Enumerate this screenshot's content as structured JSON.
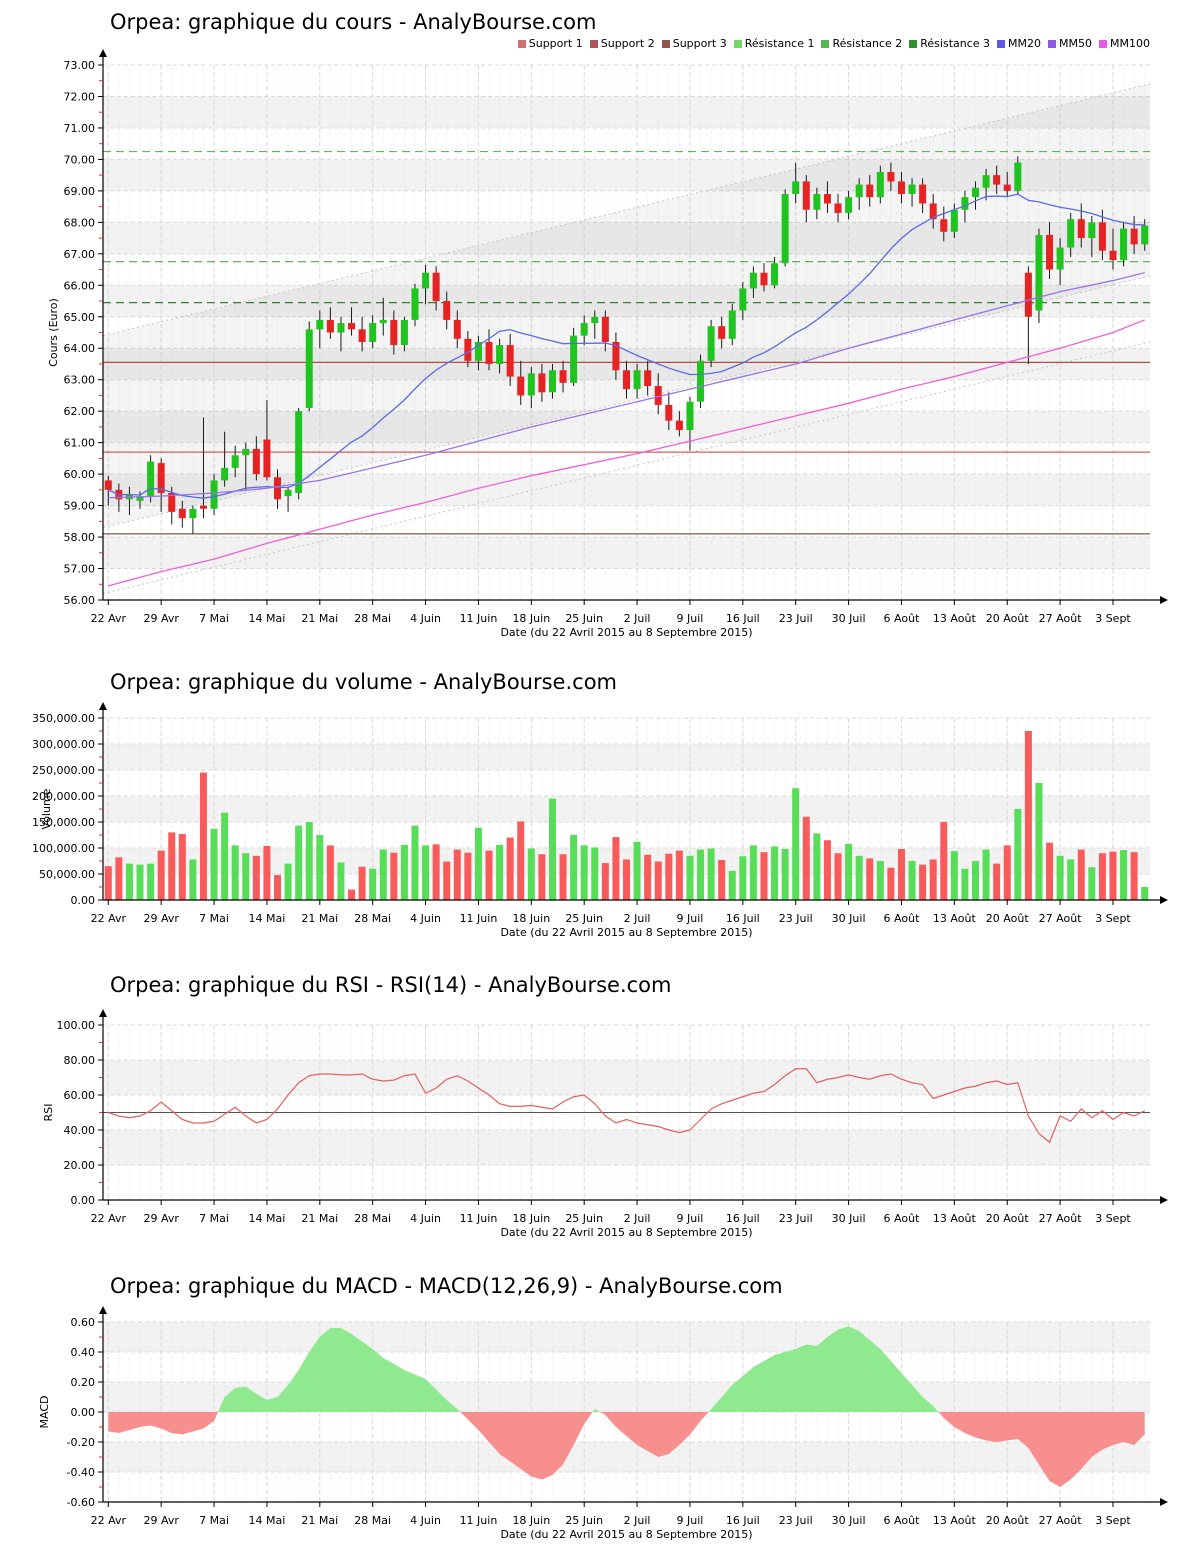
{
  "xlabel": "Date (du 22 Avril 2015 au 8 Septembre 2015)",
  "xticklabels": [
    "22 Avr",
    "29 Avr",
    "7 Mai",
    "14 Mai",
    "21 Mai",
    "28 Mai",
    "4 Juin",
    "11 Juin",
    "18 Juin",
    "25 Juin",
    "2 Juil",
    "9 Juil",
    "16 Juil",
    "23 Juil",
    "30 Juil",
    "6 Août",
    "13 Août",
    "20 Août",
    "27 Août",
    "3 Sept"
  ],
  "chart_data": [
    {
      "type": "candlestick",
      "title": "Orpea: graphique du cours - AnalyBourse.com",
      "ylabel": "Cours (Euro)",
      "ylim": [
        56,
        73
      ],
      "ytick_step": 1,
      "up_color": "#1fc41f",
      "down_color": "#e62222",
      "legend": [
        {
          "label": "Support 1",
          "color": "#c97070"
        },
        {
          "label": "Support 2",
          "color": "#b05656"
        },
        {
          "label": "Support 3",
          "color": "#96544e"
        },
        {
          "label": "Résistance 1",
          "color": "#77d766"
        },
        {
          "label": "Résistance 2",
          "color": "#55b855"
        },
        {
          "label": "Résistance 3",
          "color": "#2f8f2f"
        },
        {
          "label": "MM20",
          "color": "#5a5ae6"
        },
        {
          "label": "MM50",
          "color": "#8f5ae6"
        },
        {
          "label": "MM100",
          "color": "#e65ae6"
        }
      ],
      "support_lines": [
        {
          "label": "Support 1",
          "value": 63.55,
          "color": "#b34d4d"
        },
        {
          "label": "Support 2",
          "value": 60.7,
          "color": "#d05e5e"
        },
        {
          "label": "Support 3",
          "value": 58.1,
          "color": "#8f4f48"
        }
      ],
      "resistance_lines": [
        {
          "label": "Résistance 1",
          "value": 65.45,
          "color": "#357f35"
        },
        {
          "label": "Résistance 2",
          "value": 66.75,
          "color": "#4aa84a"
        },
        {
          "label": "Résistance 3",
          "value": 70.25,
          "color": "#55bb55"
        }
      ],
      "mm20": {
        "label": "MM20",
        "color": "#5c6be0"
      },
      "mm50": {
        "label": "MM50",
        "color": "#9a72ea",
        "points": [
          [
            0,
            59.25
          ],
          [
            5,
            59.3
          ],
          [
            10,
            59.4
          ],
          [
            15,
            59.55
          ],
          [
            20,
            59.8
          ],
          [
            25,
            60.2
          ],
          [
            30,
            60.6
          ],
          [
            35,
            61.05
          ],
          [
            40,
            61.5
          ],
          [
            45,
            61.9
          ],
          [
            50,
            62.3
          ],
          [
            55,
            62.7
          ],
          [
            60,
            63.1
          ],
          [
            65,
            63.5
          ],
          [
            70,
            64.0
          ],
          [
            75,
            64.45
          ],
          [
            80,
            64.9
          ],
          [
            85,
            65.35
          ],
          [
            90,
            65.8
          ],
          [
            95,
            66.15
          ],
          [
            98,
            66.4
          ]
        ]
      },
      "mm100": {
        "label": "MM100",
        "color": "#f05fd5",
        "points": [
          [
            0,
            56.45
          ],
          [
            5,
            56.9
          ],
          [
            10,
            57.3
          ],
          [
            15,
            57.8
          ],
          [
            20,
            58.25
          ],
          [
            25,
            58.7
          ],
          [
            30,
            59.1
          ],
          [
            35,
            59.55
          ],
          [
            40,
            59.95
          ],
          [
            45,
            60.3
          ],
          [
            50,
            60.65
          ],
          [
            55,
            61.05
          ],
          [
            60,
            61.45
          ],
          [
            65,
            61.85
          ],
          [
            70,
            62.25
          ],
          [
            75,
            62.7
          ],
          [
            80,
            63.1
          ],
          [
            85,
            63.55
          ],
          [
            90,
            64.0
          ],
          [
            95,
            64.5
          ],
          [
            98,
            64.9
          ]
        ]
      },
      "channel": {
        "line_color": "#c4c4c4",
        "fill": "rgba(0,0,0,0.045)",
        "lines": [
          [
            64.4,
            72.4
          ],
          [
            58.3,
            66.3
          ],
          [
            56.2,
            64.2
          ]
        ],
        "fill_between": [
          0,
          1
        ]
      },
      "candles": [
        [
          59.8,
          59.95,
          59.0,
          59.5
        ],
        [
          59.5,
          59.7,
          58.8,
          59.2
        ],
        [
          59.2,
          59.6,
          58.7,
          59.35
        ],
        [
          59.15,
          59.45,
          58.9,
          59.3
        ],
        [
          59.3,
          60.6,
          59.1,
          60.4
        ],
        [
          60.35,
          60.5,
          58.8,
          59.4
        ],
        [
          59.4,
          59.6,
          58.4,
          58.8
        ],
        [
          58.9,
          59.15,
          58.3,
          58.6
        ],
        [
          58.6,
          59.0,
          58.1,
          58.9
        ],
        [
          59.0,
          61.8,
          58.6,
          58.9
        ],
        [
          58.9,
          60.0,
          58.7,
          59.8
        ],
        [
          59.8,
          61.35,
          59.6,
          60.2
        ],
        [
          60.2,
          60.9,
          59.9,
          60.6
        ],
        [
          60.6,
          61.0,
          59.5,
          60.8
        ],
        [
          60.8,
          61.2,
          59.8,
          60.0
        ],
        [
          61.1,
          62.35,
          59.8,
          59.9
        ],
        [
          59.9,
          60.15,
          58.9,
          59.2
        ],
        [
          59.3,
          59.6,
          58.8,
          59.5
        ],
        [
          59.4,
          62.1,
          59.2,
          62.0
        ],
        [
          62.1,
          64.85,
          62.0,
          64.6
        ],
        [
          64.6,
          65.2,
          64.0,
          64.9
        ],
        [
          64.9,
          65.3,
          64.3,
          64.5
        ],
        [
          64.5,
          65.0,
          63.9,
          64.8
        ],
        [
          64.8,
          65.3,
          64.4,
          64.6
        ],
        [
          64.6,
          65.0,
          63.9,
          64.2
        ],
        [
          64.2,
          65.05,
          64.0,
          64.8
        ],
        [
          64.8,
          65.6,
          64.4,
          64.9
        ],
        [
          64.9,
          65.2,
          63.8,
          64.1
        ],
        [
          64.1,
          65.0,
          63.9,
          64.9
        ],
        [
          64.9,
          66.05,
          64.7,
          65.9
        ],
        [
          65.9,
          66.65,
          65.4,
          66.4
        ],
        [
          66.4,
          66.6,
          65.2,
          65.5
        ],
        [
          65.5,
          65.8,
          64.6,
          64.9
        ],
        [
          64.9,
          65.2,
          64.0,
          64.3
        ],
        [
          64.3,
          64.55,
          63.4,
          63.6
        ],
        [
          63.6,
          64.4,
          63.3,
          64.2
        ],
        [
          64.2,
          64.6,
          63.3,
          63.5
        ],
        [
          63.5,
          64.3,
          63.2,
          64.1
        ],
        [
          64.1,
          64.45,
          62.8,
          63.1
        ],
        [
          63.1,
          63.6,
          62.2,
          62.5
        ],
        [
          62.5,
          63.4,
          62.1,
          63.2
        ],
        [
          63.2,
          63.5,
          62.3,
          62.6
        ],
        [
          62.6,
          63.5,
          62.4,
          63.3
        ],
        [
          63.3,
          63.6,
          62.6,
          62.9
        ],
        [
          62.9,
          64.65,
          62.8,
          64.4
        ],
        [
          64.4,
          65.05,
          64.1,
          64.8
        ],
        [
          64.8,
          65.2,
          64.3,
          65.0
        ],
        [
          65.0,
          65.2,
          63.9,
          64.2
        ],
        [
          64.2,
          64.5,
          63.0,
          63.3
        ],
        [
          63.3,
          63.6,
          62.4,
          62.7
        ],
        [
          62.7,
          63.5,
          62.4,
          63.3
        ],
        [
          63.3,
          63.6,
          62.5,
          62.8
        ],
        [
          62.8,
          63.2,
          61.9,
          62.2
        ],
        [
          62.2,
          62.6,
          61.4,
          61.7
        ],
        [
          61.7,
          62.0,
          61.2,
          61.4
        ],
        [
          61.4,
          62.45,
          60.75,
          62.3
        ],
        [
          62.3,
          63.8,
          62.1,
          63.6
        ],
        [
          63.6,
          64.9,
          63.4,
          64.7
        ],
        [
          64.7,
          65.0,
          64.0,
          64.3
        ],
        [
          64.3,
          65.4,
          64.1,
          65.2
        ],
        [
          65.2,
          66.1,
          64.9,
          65.9
        ],
        [
          65.9,
          66.6,
          65.6,
          66.4
        ],
        [
          66.4,
          66.7,
          65.8,
          66.0
        ],
        [
          66.0,
          66.9,
          65.9,
          66.7
        ],
        [
          66.7,
          69.05,
          66.6,
          68.9
        ],
        [
          68.9,
          69.9,
          68.6,
          69.3
        ],
        [
          69.3,
          69.5,
          68.0,
          68.4
        ],
        [
          68.4,
          69.1,
          68.1,
          68.9
        ],
        [
          68.9,
          69.3,
          68.3,
          68.6
        ],
        [
          68.6,
          68.9,
          68.0,
          68.3
        ],
        [
          68.3,
          69.0,
          68.1,
          68.8
        ],
        [
          68.8,
          69.4,
          68.4,
          69.2
        ],
        [
          69.2,
          69.5,
          68.5,
          68.8
        ],
        [
          68.8,
          69.8,
          68.6,
          69.6
        ],
        [
          69.6,
          69.9,
          69.0,
          69.3
        ],
        [
          69.3,
          69.6,
          68.6,
          68.9
        ],
        [
          68.9,
          69.4,
          68.5,
          69.2
        ],
        [
          69.2,
          69.4,
          68.3,
          68.6
        ],
        [
          68.6,
          68.9,
          67.8,
          68.1
        ],
        [
          68.1,
          68.5,
          67.4,
          67.7
        ],
        [
          67.7,
          68.6,
          67.5,
          68.4
        ],
        [
          68.4,
          69.0,
          68.0,
          68.8
        ],
        [
          68.8,
          69.3,
          68.4,
          69.1
        ],
        [
          69.1,
          69.7,
          68.7,
          69.5
        ],
        [
          69.5,
          69.8,
          68.9,
          69.2
        ],
        [
          69.2,
          69.6,
          68.8,
          69.0
        ],
        [
          69.0,
          70.1,
          68.9,
          69.9
        ],
        [
          66.4,
          66.6,
          63.5,
          65.0
        ],
        [
          65.2,
          67.8,
          64.8,
          67.6
        ],
        [
          67.6,
          68.0,
          66.2,
          66.5
        ],
        [
          66.5,
          67.5,
          66.0,
          67.2
        ],
        [
          67.2,
          68.3,
          66.9,
          68.1
        ],
        [
          68.1,
          68.6,
          67.2,
          67.5
        ],
        [
          67.5,
          68.2,
          66.9,
          68.0
        ],
        [
          68.0,
          68.4,
          66.8,
          67.1
        ],
        [
          67.1,
          67.8,
          66.5,
          66.8
        ],
        [
          66.8,
          68.0,
          66.6,
          67.8
        ],
        [
          67.8,
          68.2,
          67.0,
          67.3
        ],
        [
          67.3,
          68.1,
          67.1,
          67.9
        ]
      ]
    },
    {
      "type": "bar",
      "title": "Orpea: graphique du volume - AnalyBourse.com",
      "ylabel": "Volume",
      "ylim": [
        0,
        350000
      ],
      "ytick_step": 50000,
      "up_color": "#58dd58",
      "down_color": "#f95b5b",
      "values": [
        65000,
        82000,
        70000,
        68000,
        70000,
        95000,
        130000,
        127000,
        78000,
        245000,
        137000,
        168000,
        105000,
        90000,
        85000,
        104000,
        48000,
        70000,
        143000,
        150000,
        125000,
        105000,
        72000,
        20000,
        64000,
        60000,
        97000,
        91000,
        106000,
        143000,
        105000,
        107000,
        74000,
        97000,
        91000,
        139000,
        95000,
        106000,
        120000,
        151000,
        99000,
        88000,
        195000,
        88000,
        125000,
        105000,
        101000,
        71000,
        121000,
        78000,
        112000,
        87000,
        74000,
        89000,
        95000,
        85000,
        97000,
        99000,
        77000,
        56000,
        84000,
        105000,
        92000,
        103000,
        98000,
        215000,
        160000,
        128000,
        115000,
        90000,
        108000,
        85000,
        80000,
        75000,
        62000,
        98000,
        75000,
        68000,
        78000,
        150000,
        94000,
        60000,
        75000,
        97000,
        70000,
        105000,
        175000,
        325000,
        225000,
        110000,
        85000,
        78000,
        97000,
        63000,
        90000,
        93000,
        96000,
        92000,
        25000
      ]
    },
    {
      "type": "line",
      "title": "Orpea: graphique du RSI - RSI(14) - AnalyBourse.com",
      "ylabel": "RSI",
      "ylim": [
        0,
        100
      ],
      "ytick_step": 20,
      "midline": 50,
      "color": "#e36060",
      "values": [
        50,
        48,
        47,
        48,
        51,
        56,
        51,
        46,
        44,
        44,
        45,
        49,
        53,
        48,
        44,
        46,
        52,
        60,
        67,
        71,
        72,
        72,
        71.5,
        71.5,
        72,
        69,
        68,
        68.5,
        71,
        72,
        61,
        64,
        69,
        71,
        68,
        64,
        60,
        55,
        53.5,
        53.5,
        54,
        53,
        52,
        56,
        59,
        60,
        55,
        48,
        44,
        46,
        44,
        43,
        42,
        40,
        38.5,
        40,
        46,
        52,
        55,
        57,
        59,
        61,
        62,
        66,
        71,
        75,
        75,
        67,
        69,
        70,
        71.5,
        70,
        69,
        71,
        72,
        69,
        67,
        66,
        58,
        60,
        62,
        64,
        65,
        67,
        68,
        66,
        67,
        48,
        38,
        33,
        48,
        45,
        52,
        47,
        51,
        46,
        50,
        48,
        51
      ]
    },
    {
      "type": "area",
      "title": "Orpea: graphique du MACD - MACD(12,26,9) - AnalyBourse.com",
      "ylabel": "MACD",
      "ylim": [
        -0.6,
        0.6
      ],
      "ytick_step": 0.2,
      "pos_color": "#8fe98f",
      "neg_color": "#f78f8f",
      "values": [
        -0.13,
        -0.14,
        -0.12,
        -0.1,
        -0.09,
        -0.11,
        -0.14,
        -0.15,
        -0.13,
        -0.11,
        -0.06,
        0.1,
        0.16,
        0.17,
        0.12,
        0.08,
        0.1,
        0.18,
        0.28,
        0.4,
        0.5,
        0.56,
        0.56,
        0.52,
        0.47,
        0.42,
        0.36,
        0.32,
        0.28,
        0.25,
        0.22,
        0.15,
        0.08,
        0.02,
        -0.05,
        -0.12,
        -0.2,
        -0.28,
        -0.33,
        -0.38,
        -0.43,
        -0.45,
        -0.42,
        -0.35,
        -0.22,
        -0.08,
        0.02,
        -0.02,
        -0.1,
        -0.16,
        -0.22,
        -0.26,
        -0.3,
        -0.28,
        -0.22,
        -0.15,
        -0.06,
        0.02,
        0.1,
        0.18,
        0.24,
        0.3,
        0.34,
        0.38,
        0.4,
        0.42,
        0.45,
        0.44,
        0.5,
        0.55,
        0.57,
        0.54,
        0.48,
        0.42,
        0.34,
        0.26,
        0.18,
        0.1,
        0.04,
        -0.04,
        -0.1,
        -0.14,
        -0.17,
        -0.19,
        -0.2,
        -0.19,
        -0.18,
        -0.24,
        -0.35,
        -0.46,
        -0.5,
        -0.45,
        -0.38,
        -0.3,
        -0.25,
        -0.22,
        -0.2,
        -0.22,
        -0.15
      ]
    }
  ]
}
